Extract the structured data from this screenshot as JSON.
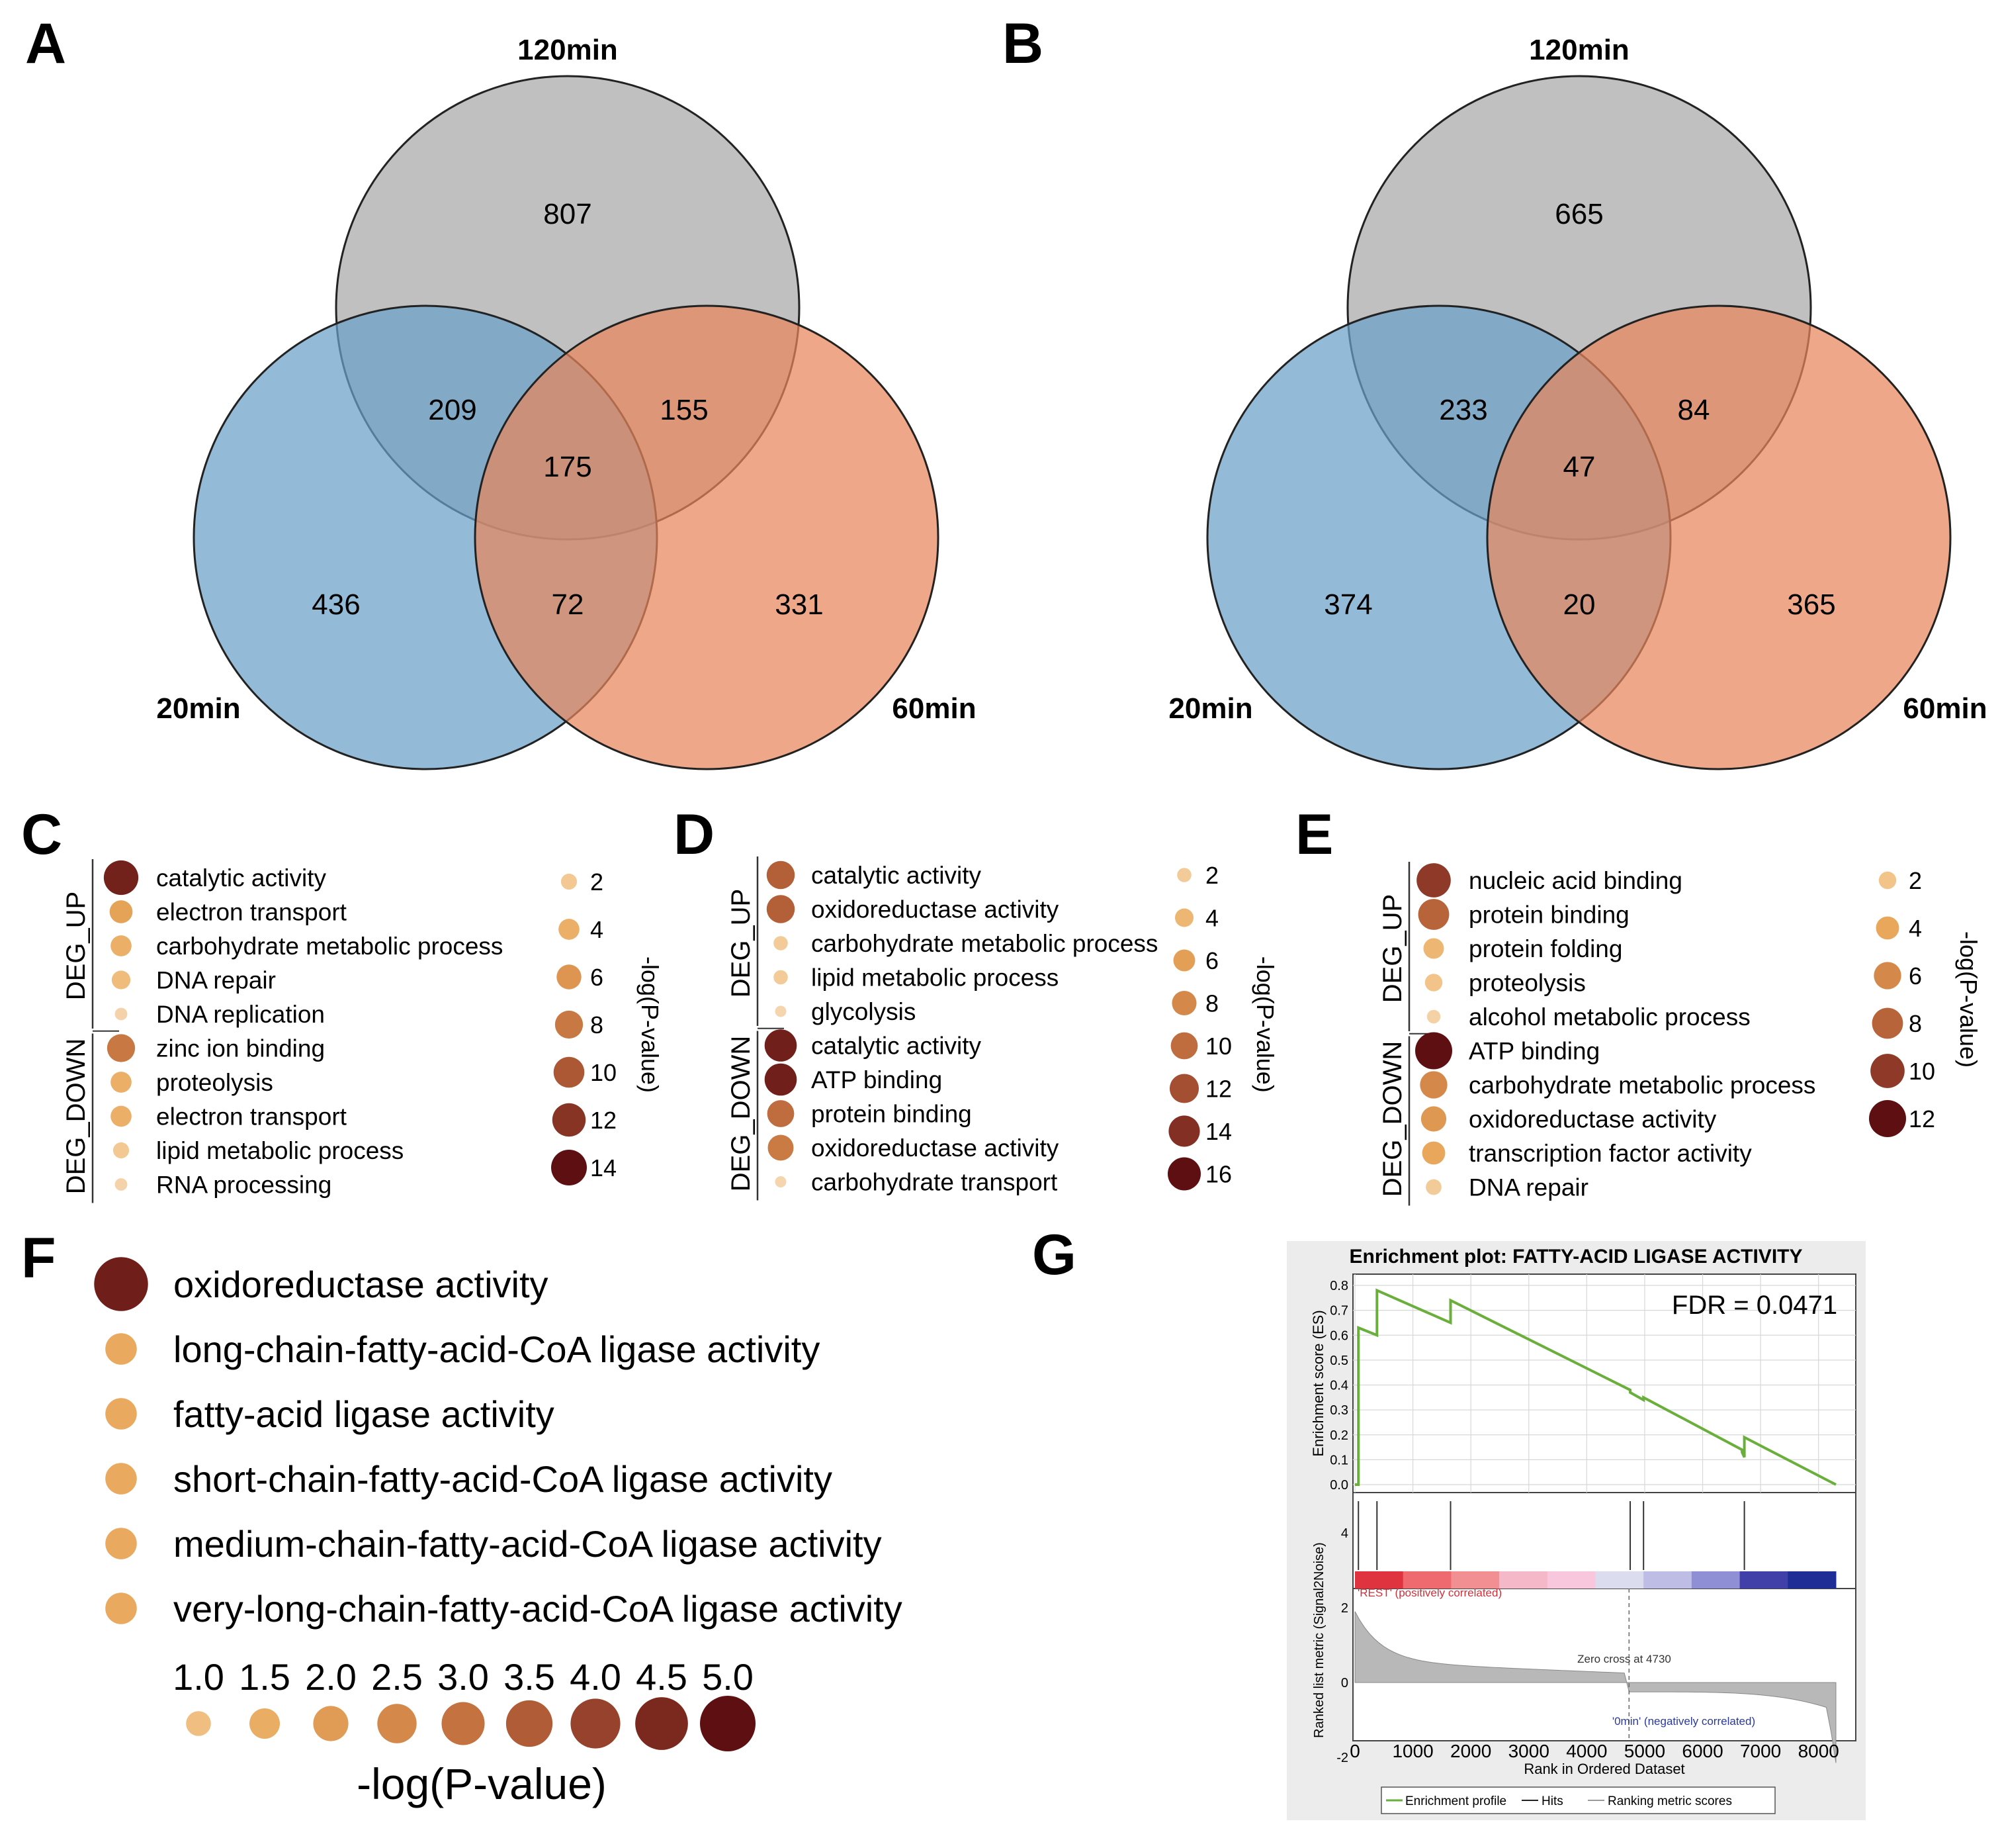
{
  "panels": {
    "A": "A",
    "B": "B",
    "C": "C",
    "D": "D",
    "E": "E",
    "F": "F",
    "G": "G"
  },
  "colors": {
    "circle_120": "#b2b2b2",
    "circle_20": "#6a9fc6",
    "circle_60": "#e8865c",
    "gsea_line": "#6aaf3c",
    "bubble_scale": [
      "#f6dfc2",
      "#f2c48a",
      "#e8a75a",
      "#d4884a",
      "#b8643a",
      "#8f3a28",
      "#5e0f12"
    ]
  },
  "chart_data": [
    {
      "type": "venn",
      "panel": "A",
      "sets": [
        "120min",
        "20min",
        "60min"
      ],
      "regions": {
        "only_120": 807,
        "only_20": 436,
        "only_60": 331,
        "i_120_20": 209,
        "i_120_60": 155,
        "i_20_60": 72,
        "all": 175
      }
    },
    {
      "type": "venn",
      "panel": "B",
      "sets": [
        "120min",
        "20min",
        "60min"
      ],
      "regions": {
        "only_120": 665,
        "only_20": 374,
        "only_60": 365,
        "i_120_20": 233,
        "i_120_60": 84,
        "i_20_60": 20,
        "all": 47
      }
    },
    {
      "type": "bubble",
      "panel": "C",
      "group_labels": [
        "DEG_UP",
        "DEG_DOWN"
      ],
      "items": [
        {
          "group": "DEG_UP",
          "term": "catalytic activity",
          "value": 13
        },
        {
          "group": "DEG_UP",
          "term": "electron transport",
          "value": 5
        },
        {
          "group": "DEG_UP",
          "term": "carbohydrate metabolic process",
          "value": 4
        },
        {
          "group": "DEG_UP",
          "term": "DNA repair",
          "value": 3
        },
        {
          "group": "DEG_UP",
          "term": "DNA replication",
          "value": 1
        },
        {
          "group": "DEG_DOWN",
          "term": "zinc ion binding",
          "value": 8
        },
        {
          "group": "DEG_DOWN",
          "term": "proteolysis",
          "value": 4
        },
        {
          "group": "DEG_DOWN",
          "term": "electron transport",
          "value": 4
        },
        {
          "group": "DEG_DOWN",
          "term": "lipid metabolic process",
          "value": 2
        },
        {
          "group": "DEG_DOWN",
          "term": "RNA processing",
          "value": 1
        }
      ],
      "legend": {
        "title": "-log(P-value)",
        "values": [
          2,
          4,
          6,
          8,
          10,
          12,
          14
        ]
      }
    },
    {
      "type": "bubble",
      "panel": "D",
      "group_labels": [
        "DEG_UP",
        "DEG_DOWN"
      ],
      "items": [
        {
          "group": "DEG_UP",
          "term": "catalytic activity",
          "value": 11
        },
        {
          "group": "DEG_UP",
          "term": "oxidoreductase activity",
          "value": 11
        },
        {
          "group": "DEG_UP",
          "term": "carbohydrate metabolic process",
          "value": 2
        },
        {
          "group": "DEG_UP",
          "term": "lipid metabolic process",
          "value": 2
        },
        {
          "group": "DEG_UP",
          "term": "glycolysis",
          "value": 1
        },
        {
          "group": "DEG_DOWN",
          "term": "catalytic activity",
          "value": 15
        },
        {
          "group": "DEG_DOWN",
          "term": "ATP binding",
          "value": 15
        },
        {
          "group": "DEG_DOWN",
          "term": "protein binding",
          "value": 10
        },
        {
          "group": "DEG_DOWN",
          "term": "oxidoreductase activity",
          "value": 9
        },
        {
          "group": "DEG_DOWN",
          "term": "carbohydrate transport",
          "value": 1
        }
      ],
      "legend": {
        "title": "-log(P-value)",
        "values": [
          2,
          4,
          6,
          8,
          10,
          12,
          14,
          16
        ]
      }
    },
    {
      "type": "bubble",
      "panel": "E",
      "group_labels": [
        "DEG_UP",
        "DEG_DOWN"
      ],
      "items": [
        {
          "group": "DEG_UP",
          "term": "nucleic acid binding",
          "value": 10
        },
        {
          "group": "DEG_UP",
          "term": "protein binding",
          "value": 8
        },
        {
          "group": "DEG_UP",
          "term": "protein folding",
          "value": 3
        },
        {
          "group": "DEG_UP",
          "term": "proteolysis",
          "value": 2
        },
        {
          "group": "DEG_UP",
          "term": "alcohol metabolic process",
          "value": 1
        },
        {
          "group": "DEG_DOWN",
          "term": "ATP binding",
          "value": 12
        },
        {
          "group": "DEG_DOWN",
          "term": "carbohydrate metabolic process",
          "value": 6
        },
        {
          "group": "DEG_DOWN",
          "term": "oxidoreductase activity",
          "value": 5
        },
        {
          "group": "DEG_DOWN",
          "term": "transcription factor activity",
          "value": 4
        },
        {
          "group": "DEG_DOWN",
          "term": "DNA repair",
          "value": 1.5
        }
      ],
      "legend": {
        "title": "-log(P-value)",
        "values": [
          2,
          4,
          6,
          8,
          10,
          12
        ]
      }
    },
    {
      "type": "bubble",
      "panel": "F",
      "items": [
        {
          "term": "oxidoreductase activity",
          "value": 4.7
        },
        {
          "term": "long-chain-fatty-acid-CoA ligase activity",
          "value": 1.6
        },
        {
          "term": "fatty-acid ligase activity",
          "value": 1.6
        },
        {
          "term": "short-chain-fatty-acid-CoA ligase activity",
          "value": 1.6
        },
        {
          "term": "medium-chain-fatty-acid-CoA ligase activity",
          "value": 1.6
        },
        {
          "term": "very-long-chain-fatty-acid-CoA ligase activity",
          "value": 1.6
        }
      ],
      "legend": {
        "title": "-log(P-value)",
        "values": [
          1.0,
          1.5,
          2.0,
          2.5,
          3.0,
          3.5,
          4.0,
          4.5,
          5.0
        ],
        "labels": [
          "1.0",
          "1.5",
          "2.0",
          "2.5",
          "3.0",
          "3.5",
          "4.0",
          "4.5",
          "5.0"
        ]
      }
    },
    {
      "type": "line",
      "panel": "G",
      "title": "Enrichment plot: FATTY-ACID LIGASE ACTIVITY",
      "fdr_label": "FDR = 0.0471",
      "ylabel": "Enrichment score (ES)",
      "ylim": [
        0.0,
        0.8
      ],
      "y_ticks": [
        "0.8",
        "0.7",
        "0.6",
        "0.5",
        "0.4",
        "0.3",
        "0.2",
        "0.1",
        "0.0"
      ],
      "es_x": [
        0,
        60,
        60,
        380,
        380,
        1650,
        1650,
        4750,
        4750,
        4980,
        4980,
        6680,
        6680,
        6720,
        6720,
        8300
      ],
      "es_y": [
        0.0,
        0.0,
        0.63,
        0.6,
        0.78,
        0.65,
        0.74,
        0.38,
        0.37,
        0.34,
        0.35,
        0.14,
        0.13,
        0.11,
        0.19,
        0.0
      ],
      "hits": [
        60,
        380,
        1650,
        4750,
        4980,
        6720
      ],
      "heat_colors": [
        "#e03340",
        "#ef6a6f",
        "#f28f92",
        "#f4b8c9",
        "#f8c7dd",
        "#dcdcef",
        "#bdbde6",
        "#8f8fd6",
        "#4040a8",
        "#1f2e96"
      ],
      "pos_label": "'REST' (positively correlated)",
      "neg_label": "'0min' (negatively correlated)",
      "zero_cross": "Zero cross at 4730",
      "rank_ylabel": "Ranked list metric (Signal2Noise)",
      "rank_y_ticks": [
        "4",
        "2",
        "0",
        "-2"
      ],
      "xlabel": "Rank in Ordered Dataset",
      "xlim": [
        0,
        8300
      ],
      "x_ticks": [
        "0",
        "1000",
        "2000",
        "3000",
        "4000",
        "5000",
        "6000",
        "7000",
        "8000"
      ],
      "legend": [
        "Enrichment profile",
        "Hits",
        "Ranking metric scores"
      ]
    }
  ]
}
